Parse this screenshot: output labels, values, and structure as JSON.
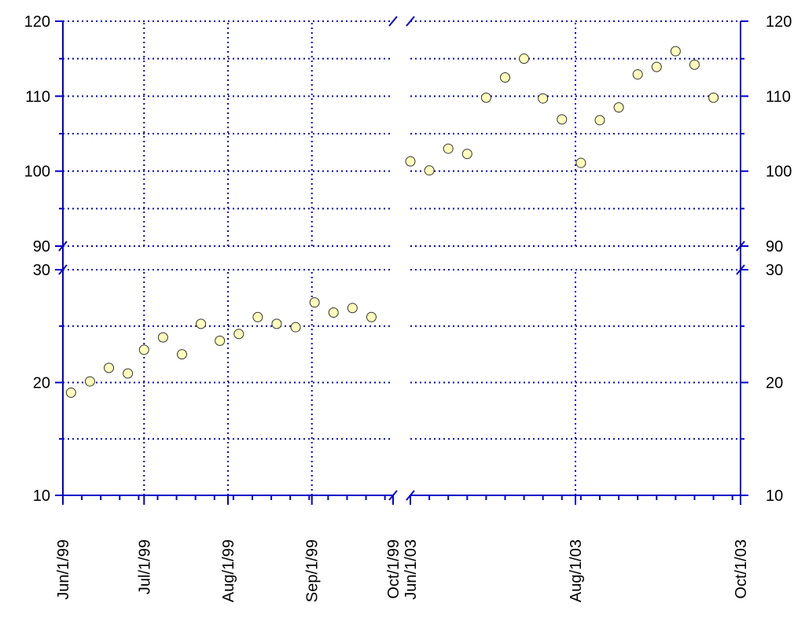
{
  "chart_data": {
    "type": "scatter",
    "title": "",
    "xlabel": "",
    "ylabel": "",
    "x_axis_break": {
      "left_segment": {
        "xlim": [
          "1999-06-01",
          "1999-10-01"
        ],
        "tick_labels": [
          "Jun/1/99",
          "Jul/1/99",
          "Aug/1/99",
          "Sep/1/99",
          "Oct/1/99"
        ],
        "tick_dates": [
          "1999-06-01",
          "1999-07-01",
          "1999-08-01",
          "1999-09-01",
          "1999-10-01"
        ]
      },
      "right_segment": {
        "xlim": [
          "2003-06-01",
          "2003-10-01"
        ],
        "tick_labels": [
          "Jun/1/03",
          "Aug/1/03",
          "Oct/1/03"
        ],
        "tick_dates": [
          "2003-06-01",
          "2003-08-01",
          "2003-10-01"
        ]
      }
    },
    "y_axis_break": {
      "upper_segment": {
        "ylim": [
          90,
          120
        ],
        "ticks": [
          90,
          100,
          110,
          120
        ]
      },
      "lower_segment": {
        "ylim": [
          10,
          30
        ],
        "ticks": [
          10,
          20,
          30
        ]
      }
    },
    "grid": true,
    "grid_color": "#0000cc",
    "marker_fill": "#ffffbb",
    "marker_stroke": "#333333",
    "axis_color": "#0000cc",
    "series": [
      {
        "points": [
          {
            "x": "1999-06-04",
            "y": 19.1
          },
          {
            "x": "1999-06-11",
            "y": 20.1
          },
          {
            "x": "1999-06-18",
            "y": 21.3
          },
          {
            "x": "1999-06-25",
            "y": 20.8
          },
          {
            "x": "1999-07-01",
            "y": 22.9
          },
          {
            "x": "1999-07-08",
            "y": 24.0
          },
          {
            "x": "1999-07-15",
            "y": 22.5
          },
          {
            "x": "1999-07-22",
            "y": 25.2
          },
          {
            "x": "1999-07-29",
            "y": 23.7
          },
          {
            "x": "1999-08-05",
            "y": 24.3
          },
          {
            "x": "1999-08-12",
            "y": 25.8
          },
          {
            "x": "1999-08-19",
            "y": 25.2
          },
          {
            "x": "1999-08-26",
            "y": 24.9
          },
          {
            "x": "1999-09-02",
            "y": 27.1
          },
          {
            "x": "1999-09-09",
            "y": 26.2
          },
          {
            "x": "1999-09-16",
            "y": 26.6
          },
          {
            "x": "1999-09-23",
            "y": 25.8
          },
          {
            "x": "2003-06-01",
            "y": 101.3
          },
          {
            "x": "2003-06-08",
            "y": 100.1
          },
          {
            "x": "2003-06-15",
            "y": 103.0
          },
          {
            "x": "2003-06-22",
            "y": 102.3
          },
          {
            "x": "2003-06-29",
            "y": 109.8
          },
          {
            "x": "2003-07-06",
            "y": 112.5
          },
          {
            "x": "2003-07-13",
            "y": 115.0
          },
          {
            "x": "2003-07-20",
            "y": 109.7
          },
          {
            "x": "2003-07-27",
            "y": 106.9
          },
          {
            "x": "2003-08-03",
            "y": 101.1
          },
          {
            "x": "2003-08-10",
            "y": 106.8
          },
          {
            "x": "2003-08-17",
            "y": 108.5
          },
          {
            "x": "2003-08-24",
            "y": 112.9
          },
          {
            "x": "2003-08-31",
            "y": 113.9
          },
          {
            "x": "2003-09-07",
            "y": 116.0
          },
          {
            "x": "2003-09-14",
            "y": 114.2
          },
          {
            "x": "2003-09-21",
            "y": 109.8
          }
        ]
      }
    ]
  }
}
